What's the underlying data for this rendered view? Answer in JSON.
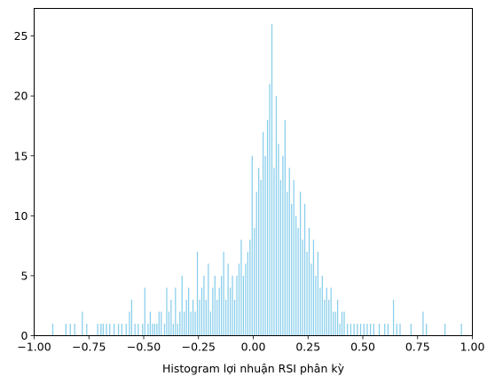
{
  "chart_data": {
    "type": "bar",
    "subtype": "histogram",
    "title": "",
    "xlabel": "Histogram lợi nhuận RSI phân kỳ",
    "ylabel": "",
    "xlim": [
      -1.0,
      1.0
    ],
    "ylim": [
      0,
      27.3
    ],
    "x_ticks": [
      "−1.00",
      "−0.75",
      "−0.50",
      "−0.25",
      "0.00",
      "0.25",
      "0.50",
      "0.75",
      "1.00"
    ],
    "x_tick_values": [
      -1.0,
      -0.75,
      -0.5,
      -0.25,
      0.0,
      0.25,
      0.5,
      0.75,
      1.0
    ],
    "y_ticks": [
      "0",
      "5",
      "10",
      "15",
      "20",
      "25"
    ],
    "y_tick_values": [
      0,
      5,
      10,
      15,
      20,
      25
    ],
    "bar_color": "#87ceeb",
    "grid": false,
    "legend": "none",
    "bin_width": 0.005,
    "bins": [
      [
        -0.915,
        1
      ],
      [
        -0.855,
        1
      ],
      [
        -0.835,
        1
      ],
      [
        -0.815,
        1
      ],
      [
        -0.78,
        2
      ],
      [
        -0.76,
        1
      ],
      [
        -0.71,
        1
      ],
      [
        -0.695,
        1
      ],
      [
        -0.685,
        1
      ],
      [
        -0.67,
        1
      ],
      [
        -0.655,
        1
      ],
      [
        -0.635,
        1
      ],
      [
        -0.615,
        1
      ],
      [
        -0.6,
        1
      ],
      [
        -0.58,
        1
      ],
      [
        -0.565,
        2
      ],
      [
        -0.555,
        3
      ],
      [
        -0.54,
        1
      ],
      [
        -0.525,
        1
      ],
      [
        -0.505,
        1
      ],
      [
        -0.495,
        4
      ],
      [
        -0.48,
        1
      ],
      [
        -0.47,
        2
      ],
      [
        -0.46,
        1
      ],
      [
        -0.45,
        1
      ],
      [
        -0.44,
        1
      ],
      [
        -0.43,
        2
      ],
      [
        -0.42,
        2
      ],
      [
        -0.405,
        1
      ],
      [
        -0.395,
        4
      ],
      [
        -0.385,
        2
      ],
      [
        -0.375,
        3
      ],
      [
        -0.365,
        1
      ],
      [
        -0.355,
        4
      ],
      [
        -0.345,
        1
      ],
      [
        -0.335,
        2
      ],
      [
        -0.325,
        5
      ],
      [
        -0.315,
        2
      ],
      [
        -0.305,
        3
      ],
      [
        -0.295,
        4
      ],
      [
        -0.285,
        2
      ],
      [
        -0.275,
        3
      ],
      [
        -0.265,
        2
      ],
      [
        -0.255,
        7
      ],
      [
        -0.245,
        3
      ],
      [
        -0.235,
        4
      ],
      [
        -0.225,
        5
      ],
      [
        -0.215,
        3
      ],
      [
        -0.205,
        6
      ],
      [
        -0.195,
        2
      ],
      [
        -0.185,
        4
      ],
      [
        -0.175,
        5
      ],
      [
        -0.165,
        3
      ],
      [
        -0.155,
        4
      ],
      [
        -0.145,
        5
      ],
      [
        -0.135,
        7
      ],
      [
        -0.125,
        3
      ],
      [
        -0.115,
        6
      ],
      [
        -0.105,
        4
      ],
      [
        -0.095,
        5
      ],
      [
        -0.085,
        3
      ],
      [
        -0.075,
        5
      ],
      [
        -0.065,
        6
      ],
      [
        -0.055,
        8
      ],
      [
        -0.045,
        5
      ],
      [
        -0.035,
        6
      ],
      [
        -0.025,
        7
      ],
      [
        -0.015,
        8
      ],
      [
        -0.005,
        15
      ],
      [
        0.005,
        9
      ],
      [
        0.015,
        12
      ],
      [
        0.025,
        14
      ],
      [
        0.035,
        13
      ],
      [
        0.045,
        17
      ],
      [
        0.055,
        15
      ],
      [
        0.065,
        18
      ],
      [
        0.075,
        21
      ],
      [
        0.085,
        26
      ],
      [
        0.095,
        14
      ],
      [
        0.105,
        20
      ],
      [
        0.115,
        16
      ],
      [
        0.125,
        13
      ],
      [
        0.135,
        15
      ],
      [
        0.145,
        18
      ],
      [
        0.155,
        12
      ],
      [
        0.165,
        14
      ],
      [
        0.175,
        11
      ],
      [
        0.185,
        13
      ],
      [
        0.195,
        10
      ],
      [
        0.205,
        9
      ],
      [
        0.215,
        12
      ],
      [
        0.225,
        8
      ],
      [
        0.235,
        11
      ],
      [
        0.245,
        7
      ],
      [
        0.255,
        9
      ],
      [
        0.265,
        6
      ],
      [
        0.275,
        8
      ],
      [
        0.285,
        5
      ],
      [
        0.295,
        7
      ],
      [
        0.305,
        4
      ],
      [
        0.315,
        5
      ],
      [
        0.325,
        3
      ],
      [
        0.335,
        4
      ],
      [
        0.345,
        3
      ],
      [
        0.355,
        4
      ],
      [
        0.365,
        2
      ],
      [
        0.375,
        2
      ],
      [
        0.385,
        3
      ],
      [
        0.395,
        1
      ],
      [
        0.405,
        2
      ],
      [
        0.415,
        2
      ],
      [
        0.43,
        1
      ],
      [
        0.445,
        1
      ],
      [
        0.46,
        1
      ],
      [
        0.475,
        1
      ],
      [
        0.49,
        1
      ],
      [
        0.505,
        1
      ],
      [
        0.52,
        1
      ],
      [
        0.535,
        1
      ],
      [
        0.55,
        1
      ],
      [
        0.575,
        1
      ],
      [
        0.6,
        1
      ],
      [
        0.615,
        1
      ],
      [
        0.64,
        3
      ],
      [
        0.655,
        1
      ],
      [
        0.67,
        1
      ],
      [
        0.72,
        1
      ],
      [
        0.775,
        2
      ],
      [
        0.79,
        1
      ],
      [
        0.875,
        1
      ],
      [
        0.95,
        1
      ]
    ]
  }
}
